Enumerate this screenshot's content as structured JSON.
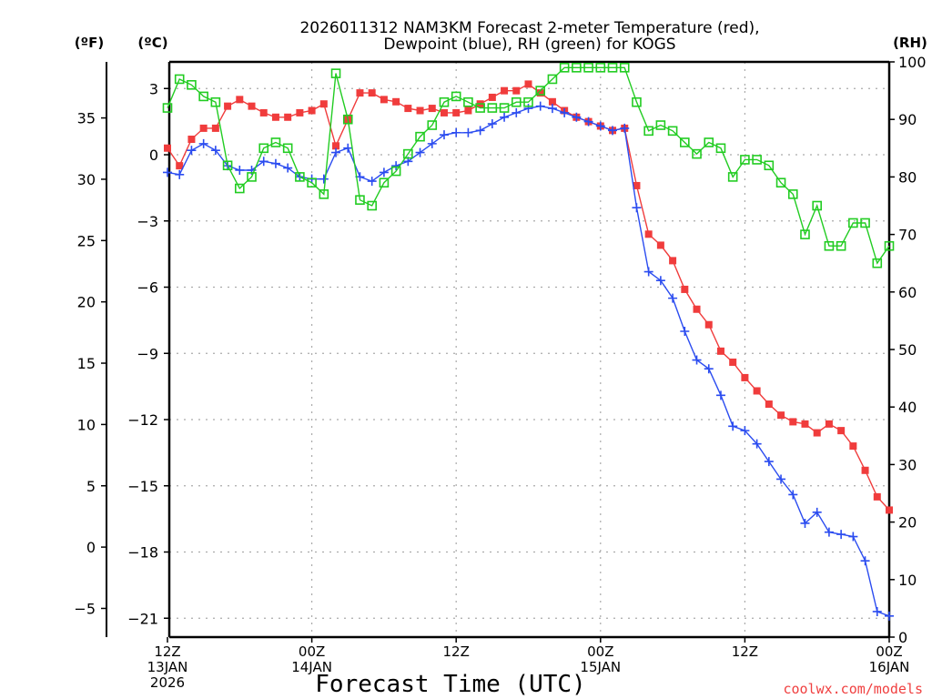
{
  "chart_data": {
    "type": "line",
    "title_line1": "2026011312 NAM3KM Forecast 2-meter Temperature (red),",
    "title_line2": "Dewpoint (blue), RH (green) for KOGS",
    "xlabel": "Forecast Time (UTC)",
    "credit": "coolwx.com/models",
    "units": {
      "f": "(ºF)",
      "c": "(ºC)",
      "rh": "(RH)"
    },
    "x_hours_range": [
      0,
      60
    ],
    "x_ticks": [
      {
        "hour": 0,
        "l1": "12Z",
        "l2": "13JAN",
        "l3": "2026"
      },
      {
        "hour": 12,
        "l1": "00Z",
        "l2": "14JAN",
        "l3": ""
      },
      {
        "hour": 24,
        "l1": "12Z",
        "l2": "",
        "l3": ""
      },
      {
        "hour": 36,
        "l1": "00Z",
        "l2": "15JAN",
        "l3": ""
      },
      {
        "hour": 48,
        "l1": "12Z",
        "l2": "",
        "l3": ""
      },
      {
        "hour": 60,
        "l1": "00Z",
        "l2": "16JAN",
        "l3": ""
      }
    ],
    "y_c_range": [
      -21.8,
      4.15
    ],
    "y_c_ticks": [
      3,
      0,
      -3,
      -6,
      -9,
      -12,
      -15,
      -18,
      -21
    ],
    "y_f_ticks": [
      35,
      30,
      25,
      20,
      15,
      10,
      5,
      0,
      -5
    ],
    "y_rh_range": [
      0,
      100
    ],
    "y_rh_ticks": [
      100,
      90,
      80,
      70,
      60,
      50,
      40,
      30,
      20,
      10,
      0
    ],
    "grid": true,
    "series": [
      {
        "name": "Temperature",
        "color": "#f03c3c",
        "marker": "filled-square",
        "unit": "C",
        "values": [
          0.3,
          -0.5,
          0.7,
          1.2,
          1.2,
          2.2,
          2.5,
          2.2,
          1.9,
          1.7,
          1.7,
          1.9,
          2.0,
          2.3,
          0.4,
          1.6,
          2.8,
          2.8,
          2.5,
          2.4,
          2.1,
          2.0,
          2.1,
          1.9,
          1.9,
          2.0,
          2.3,
          2.6,
          2.9,
          2.9,
          3.2,
          2.8,
          2.4,
          2.0,
          1.7,
          1.5,
          1.3,
          1.1,
          1.2,
          -1.4,
          -3.6,
          -4.1,
          -4.8,
          -6.1,
          -7.0,
          -7.7,
          -8.9,
          -9.4,
          -10.1,
          -10.7,
          -11.3,
          -11.8,
          -12.1,
          -12.2,
          -12.6,
          -12.2,
          -12.5,
          -13.2,
          -14.3,
          -15.5,
          -16.1
        ]
      },
      {
        "name": "Dewpoint",
        "color": "#2b4cf0",
        "marker": "plus",
        "unit": "C",
        "values": [
          -0.8,
          -0.9,
          0.2,
          0.5,
          0.2,
          -0.5,
          -0.7,
          -0.7,
          -0.3,
          -0.4,
          -0.6,
          -1.0,
          -1.1,
          -1.1,
          0.1,
          0.3,
          -1.0,
          -1.2,
          -0.8,
          -0.5,
          -0.3,
          0.1,
          0.5,
          0.9,
          1.0,
          1.0,
          1.1,
          1.4,
          1.7,
          1.9,
          2.1,
          2.2,
          2.1,
          1.9,
          1.7,
          1.5,
          1.3,
          1.1,
          1.2,
          -2.4,
          -5.3,
          -5.7,
          -6.5,
          -8.0,
          -9.3,
          -9.7,
          -10.9,
          -12.3,
          -12.5,
          -13.1,
          -13.9,
          -14.7,
          -15.4,
          -16.7,
          -16.2,
          -17.1,
          -17.2,
          -17.3,
          -18.4,
          -20.7,
          -20.9
        ]
      },
      {
        "name": "RH",
        "color": "#22cc22",
        "marker": "open-square",
        "unit": "%",
        "values": [
          92,
          97,
          96,
          94,
          93,
          82,
          78,
          80,
          85,
          86,
          85,
          80,
          79,
          77,
          98,
          90,
          76,
          75,
          79,
          81,
          84,
          87,
          89,
          93,
          94,
          93,
          92,
          92,
          92,
          93,
          93,
          95,
          97,
          99,
          99,
          99,
          99,
          99,
          99,
          93,
          88,
          89,
          88,
          86,
          84,
          86,
          85,
          80,
          83,
          83,
          82,
          79,
          77,
          70,
          75,
          68,
          68,
          72,
          72,
          65,
          68
        ]
      }
    ]
  }
}
